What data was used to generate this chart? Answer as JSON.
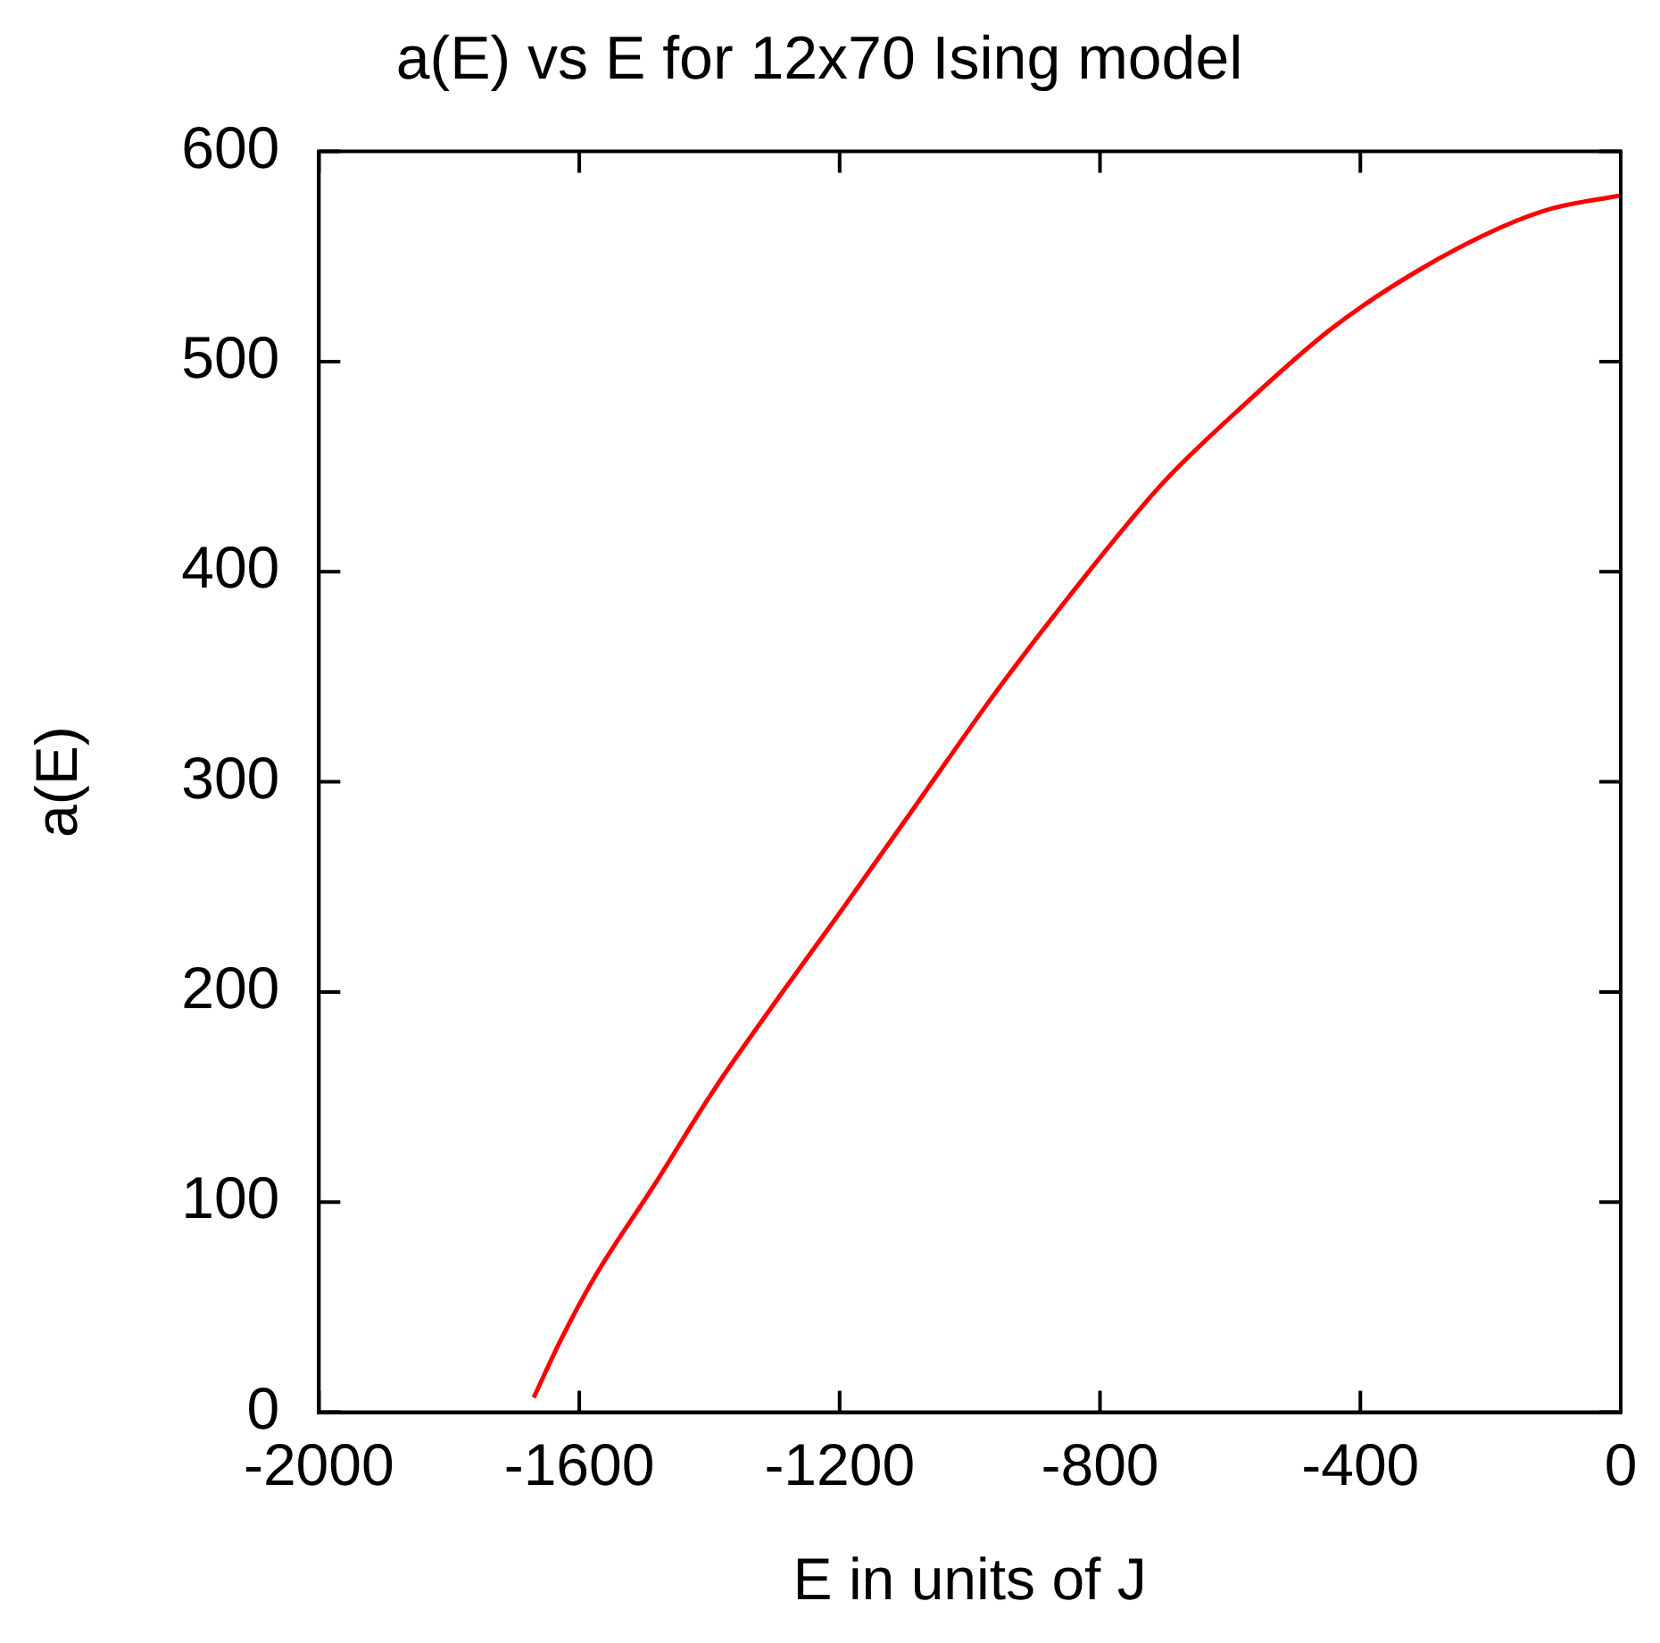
{
  "chart_data": {
    "type": "line",
    "title": "a(E) vs E for 12x70 Ising model",
    "xlabel": "E in units of J",
    "ylabel": "a(E)",
    "series": [
      {
        "color": "#ff0000",
        "x": [
          -1670,
          -1629,
          -1577,
          -1485,
          -1394,
          -1290,
          -1199,
          -1078,
          -964,
          -848,
          -704,
          -573,
          -443,
          -313,
          -183,
          -104,
          0
        ],
        "values": [
          7,
          34,
          64,
          108,
          153,
          199,
          238,
          291,
          341,
          388,
          442,
          481,
          516,
          543,
          564,
          573,
          579
        ]
      }
    ],
    "xlim": [
      -2000,
      0
    ],
    "xticks": [
      -2000,
      -1600,
      -1200,
      -800,
      -400,
      0
    ],
    "ylim": [
      0,
      600
    ],
    "yticks": [
      0,
      100,
      200,
      300,
      400,
      500,
      600
    ],
    "marker": "none",
    "line_style": "solid",
    "legend": false
  }
}
